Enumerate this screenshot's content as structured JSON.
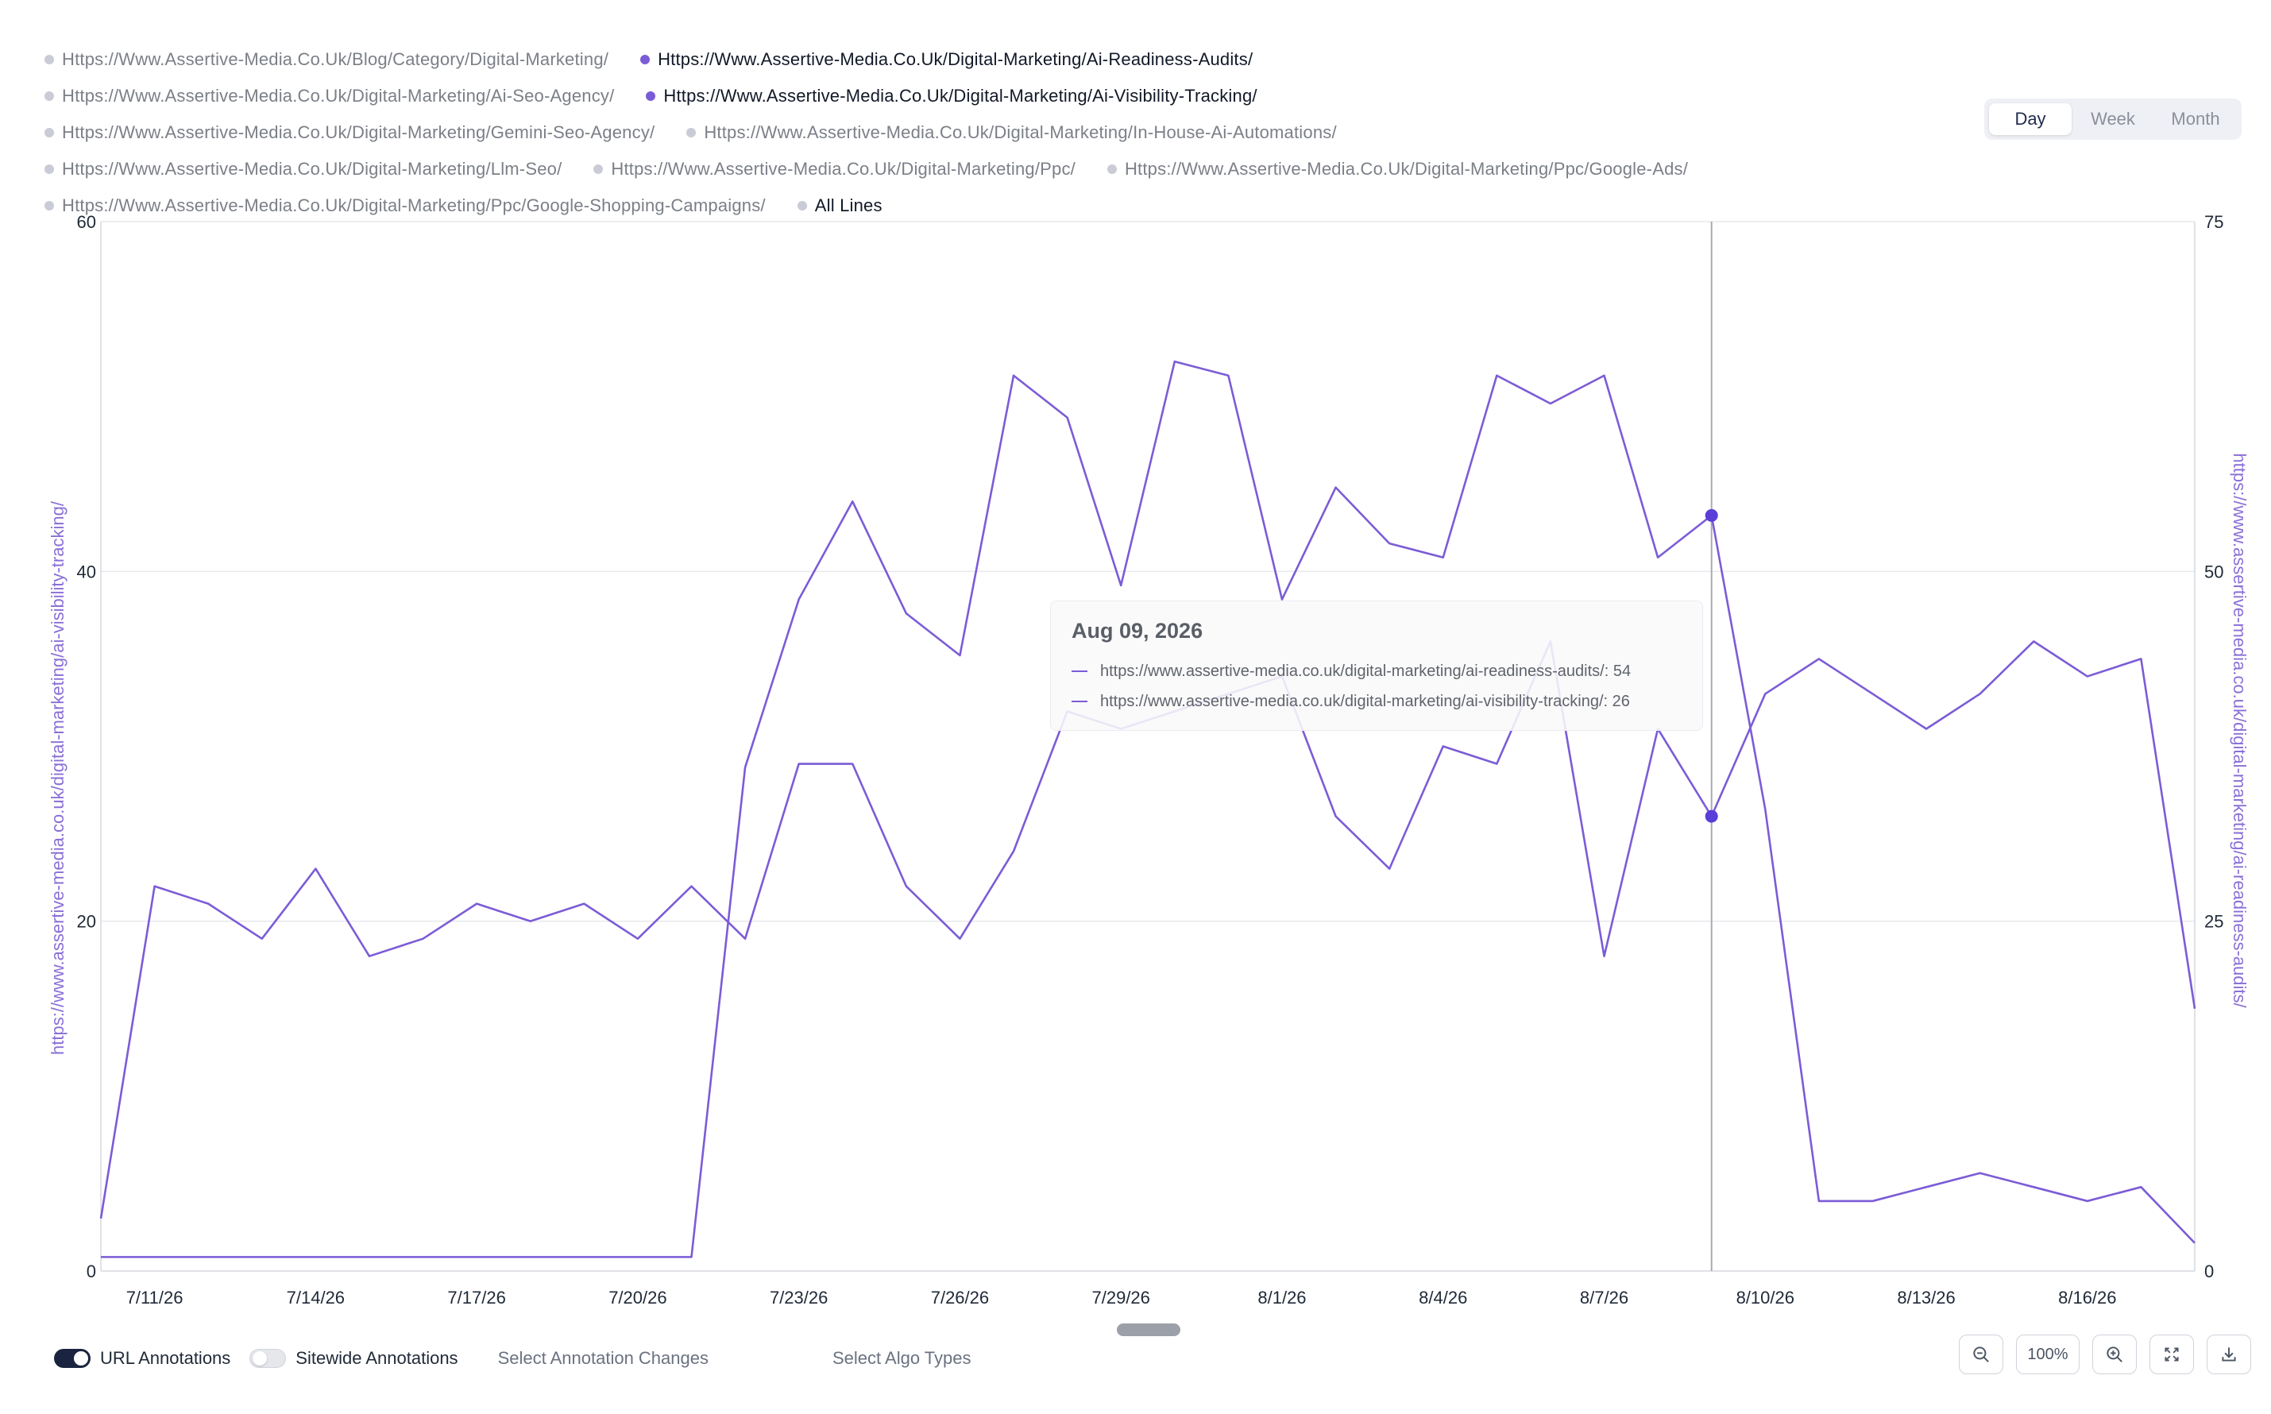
{
  "legend": {
    "items": [
      {
        "label": "Https://Www.Assertive-Media.Co.Uk/Blog/Category/Digital-Marketing/",
        "active": false
      },
      {
        "label": "Https://Www.Assertive-Media.Co.Uk/Digital-Marketing/Ai-Readiness-Audits/",
        "active": true
      },
      {
        "label": "Https://Www.Assertive-Media.Co.Uk/Digital-Marketing/Ai-Seo-Agency/",
        "active": false
      },
      {
        "label": "Https://Www.Assertive-Media.Co.Uk/Digital-Marketing/Ai-Visibility-Tracking/",
        "active": true
      },
      {
        "label": "Https://Www.Assertive-Media.Co.Uk/Digital-Marketing/Gemini-Seo-Agency/",
        "active": false
      },
      {
        "label": "Https://Www.Assertive-Media.Co.Uk/Digital-Marketing/In-House-Ai-Automations/",
        "active": false
      },
      {
        "label": "Https://Www.Assertive-Media.Co.Uk/Digital-Marketing/Llm-Seo/",
        "active": false
      },
      {
        "label": "Https://Www.Assertive-Media.Co.Uk/Digital-Marketing/Ppc/",
        "active": false
      },
      {
        "label": "Https://Www.Assertive-Media.Co.Uk/Digital-Marketing/Ppc/Google-Ads/",
        "active": false
      },
      {
        "label": "Https://Www.Assertive-Media.Co.Uk/Digital-Marketing/Ppc/Google-Shopping-Campaigns/",
        "active": false
      },
      {
        "label": "All Lines",
        "active": true,
        "all": true
      }
    ]
  },
  "range_toggle": {
    "day": "Day",
    "week": "Week",
    "month": "Month",
    "selected": "Day"
  },
  "tooltip": {
    "date": "Aug 09, 2026",
    "rows": [
      "https://www.assertive-media.co.uk/digital-marketing/ai-readiness-audits/: 54",
      "https://www.assertive-media.co.uk/digital-marketing/ai-visibility-tracking/: 26"
    ]
  },
  "bottom": {
    "url_annotations": "URL Annotations",
    "sitewide_annotations": "Sitewide Annotations",
    "select_changes": "Select Annotation Changes",
    "select_algo": "Select Algo Types",
    "zoom_percent": "100%"
  },
  "colors": {
    "line": "#7b5cd6",
    "marker": "#5a3ed8",
    "grid": "#e8e9ee",
    "cursor": "#a9abb3",
    "axis_text": "#1f2937",
    "axis_title": "#8a6fd6"
  },
  "chart_data": {
    "type": "line",
    "x": [
      "7/10/26",
      "7/11/26",
      "7/12/26",
      "7/13/26",
      "7/14/26",
      "7/15/26",
      "7/16/26",
      "7/17/26",
      "7/18/26",
      "7/19/26",
      "7/20/26",
      "7/21/26",
      "7/22/26",
      "7/23/26",
      "7/24/26",
      "7/25/26",
      "7/26/26",
      "7/27/26",
      "7/28/26",
      "7/29/26",
      "7/30/26",
      "7/31/26",
      "8/1/26",
      "8/2/26",
      "8/3/26",
      "8/4/26",
      "8/5/26",
      "8/6/26",
      "8/7/26",
      "8/8/26",
      "8/9/26",
      "8/10/26",
      "8/11/26",
      "8/12/26",
      "8/13/26",
      "8/14/26",
      "8/15/26",
      "8/16/26",
      "8/17/26",
      "8/18/26"
    ],
    "x_tick_labels": [
      "7/11/26",
      "7/14/26",
      "7/17/26",
      "7/20/26",
      "7/23/26",
      "7/26/26",
      "7/29/26",
      "8/1/26",
      "8/4/26",
      "8/7/26",
      "8/10/26",
      "8/13/26",
      "8/16/26"
    ],
    "cursor_x": "8/9/26",
    "series": [
      {
        "name": "https://www.assertive-media.co.uk/digital-marketing/ai-visibility-tracking/",
        "axis": "left",
        "values": [
          3,
          22,
          21,
          19,
          23,
          18,
          19,
          21,
          20,
          21,
          19,
          22,
          19,
          29,
          29,
          22,
          19,
          24,
          32,
          31,
          32,
          33,
          34,
          26,
          23,
          30,
          29,
          36,
          18,
          31,
          26,
          33,
          35,
          33,
          31,
          33,
          36,
          34,
          35,
          15
        ]
      },
      {
        "name": "https://www.assertive-media.co.uk/digital-marketing/ai-readiness-audits/",
        "axis": "right",
        "values": [
          1,
          1,
          1,
          1,
          1,
          1,
          1,
          1,
          1,
          1,
          1,
          1,
          36,
          48,
          55,
          47,
          44,
          64,
          61,
          49,
          65,
          64,
          48,
          56,
          52,
          51,
          64,
          62,
          64,
          51,
          54,
          33,
          5,
          5,
          6,
          7,
          6,
          5,
          6,
          2
        ]
      }
    ],
    "left_axis": {
      "label": "https://www.assertive-media.co.uk/digital-marketing/ai-visibility-tracking/",
      "range": [
        0,
        60
      ],
      "ticks": [
        0,
        20,
        40,
        60
      ]
    },
    "right_axis": {
      "label": "https://www.assertive-media.co.uk/digital-marketing/ai-readiness-audits/",
      "range": [
        0,
        75
      ],
      "ticks": [
        0,
        25,
        50,
        75
      ]
    },
    "grid": true
  }
}
